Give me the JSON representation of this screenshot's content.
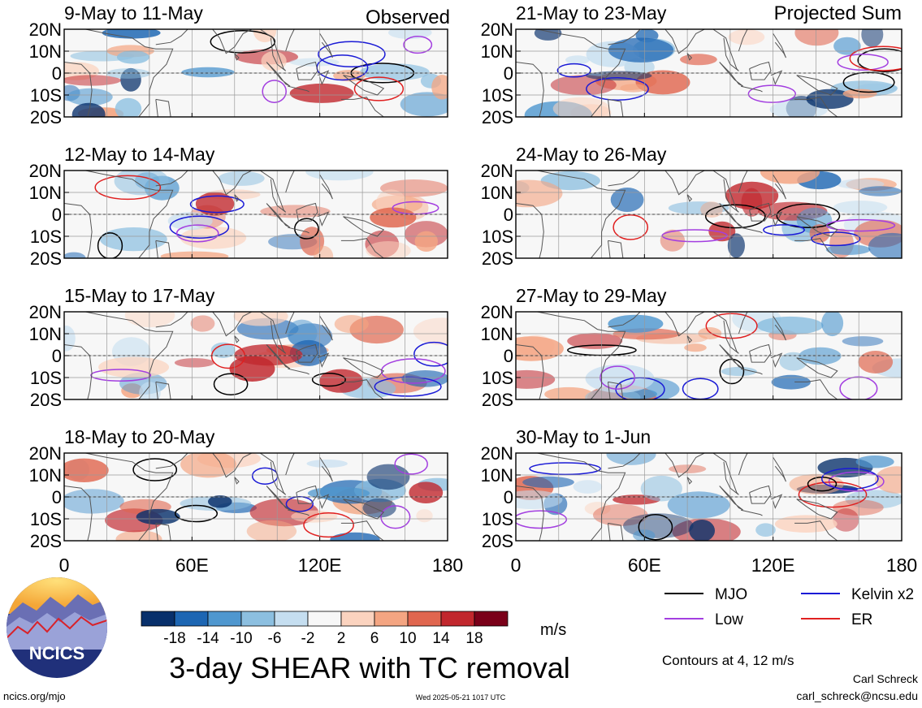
{
  "header": {
    "observed_label": "Observed",
    "projected_label": "Projected Sum"
  },
  "chart_data": {
    "type": "heatmap",
    "variable": "SHEAR",
    "units": "m/s",
    "x_ticks": [
      "0",
      "60E",
      "120E",
      "180"
    ],
    "x_values": [
      0,
      60,
      120,
      180
    ],
    "y_ticks": [
      "20N",
      "10N",
      "0",
      "10S",
      "20S"
    ],
    "y_values": [
      20,
      10,
      0,
      -10,
      -20
    ],
    "xlim": [
      0,
      180
    ],
    "ylim": [
      -20,
      20
    ],
    "colorbar": {
      "labels": [
        "-18",
        "-14",
        "-10",
        "-6",
        "-2",
        "2",
        "6",
        "10",
        "14",
        "18"
      ],
      "colors": [
        "#08306b",
        "#1d66b3",
        "#4f97cf",
        "#8cbfe0",
        "#c5def0",
        "#f7f7f7",
        "#fbd3bf",
        "#f4a582",
        "#e0664f",
        "#c1272d",
        "#7a0019"
      ]
    },
    "panels": [
      {
        "title": "9-May to 11-May",
        "column": "Observed"
      },
      {
        "title": "12-May to 14-May",
        "column": "Observed"
      },
      {
        "title": "15-May to 17-May",
        "column": "Observed"
      },
      {
        "title": "18-May to 20-May",
        "column": "Observed"
      },
      {
        "title": "21-May to 23-May",
        "column": "Projected Sum"
      },
      {
        "title": "24-May to 26-May",
        "column": "Projected Sum"
      },
      {
        "title": "27-May to 29-May",
        "column": "Projected Sum"
      },
      {
        "title": "30-May to 1-Jun",
        "column": "Projected Sum"
      }
    ],
    "legend": [
      {
        "label": "MJO",
        "color": "#000000"
      },
      {
        "label": "Kelvin x2",
        "color": "#1a1ad6"
      },
      {
        "label": "Low",
        "color": "#a33ee0"
      },
      {
        "label": "ER",
        "color": "#e02020"
      }
    ],
    "contour_note": "Contours at 4, 12 m/s",
    "title": "3-day SHEAR with TC removal"
  },
  "footer": {
    "logo_text": "NCICS",
    "url": "ncics.org/mjo",
    "timestamp": "Wed 2025-05-21 1017 UTC",
    "author": "Carl Schreck",
    "email": "carl_schreck@ncsu.edu"
  }
}
